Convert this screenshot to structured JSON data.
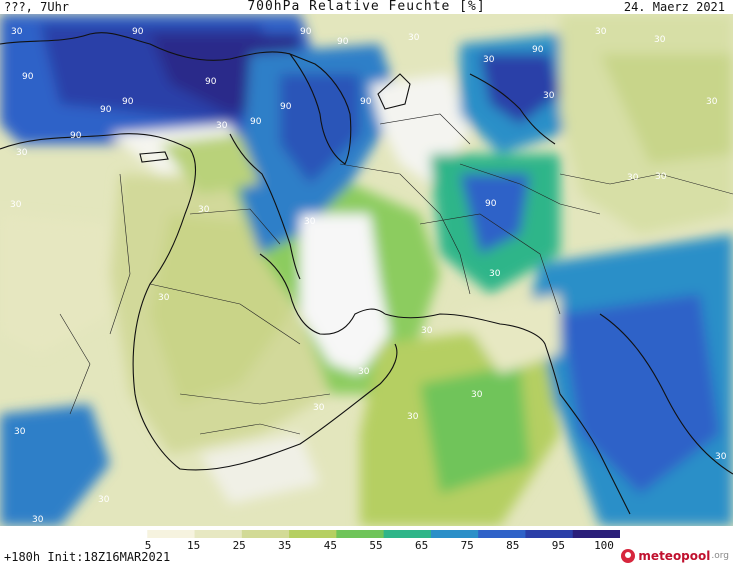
{
  "header": {
    "left": "???, 7Uhr",
    "title": "700hPa Relative Feuchte [%]",
    "date": "24. Maerz 2021"
  },
  "legend": {
    "ticks": [
      "5",
      "15",
      "25",
      "35",
      "45",
      "55",
      "65",
      "75",
      "85",
      "95",
      "100"
    ],
    "colors": [
      "#ffffff",
      "#f6f3df",
      "#e7e8c2",
      "#d2da96",
      "#b5cf62",
      "#6fc45a",
      "#2fb589",
      "#2b8fc8",
      "#2f62c8",
      "#2b3fa8",
      "#2a1f7a"
    ]
  },
  "footer": {
    "init": "+180h  Init:18Z16MAR2021",
    "brand": "meteopool",
    "brand_suffix": ".org"
  },
  "contour_labels": {
    "label30": "30",
    "label90": "90"
  }
}
